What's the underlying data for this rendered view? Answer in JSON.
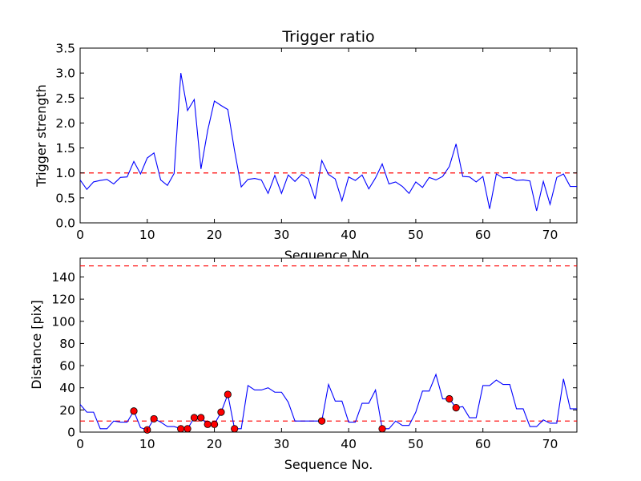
{
  "chart_data": [
    {
      "type": "line",
      "title": "Trigger ratio",
      "xlabel": "Sequence No.",
      "ylabel": "Trigger strength",
      "xlim": [
        0,
        74
      ],
      "ylim": [
        0,
        3.5
      ],
      "xticks": [
        0,
        10,
        20,
        30,
        40,
        50,
        60,
        70
      ],
      "yticks": [
        0.0,
        0.5,
        1.0,
        1.5,
        2.0,
        2.5,
        3.0,
        3.5
      ],
      "ytick_labels": [
        "0.0",
        "0.5",
        "1.0",
        "1.5",
        "2.0",
        "2.5",
        "3.0",
        "3.5"
      ],
      "threshold_lines": [
        1.0
      ],
      "line_color": "#0000ff",
      "threshold_color": "#ff0000",
      "series": [
        {
          "x": [
            0,
            1,
            2,
            3,
            4,
            5,
            6,
            7,
            8,
            9,
            10,
            11,
            12,
            13,
            14,
            15,
            16,
            17,
            18,
            19,
            20,
            21,
            22,
            23,
            24,
            25,
            26,
            27,
            28,
            29,
            30,
            31,
            32,
            33,
            34,
            35,
            36,
            37,
            38,
            39,
            40,
            41,
            42,
            43,
            44,
            45,
            46,
            47,
            48,
            49,
            50,
            51,
            52,
            53,
            54,
            55,
            56,
            57,
            58,
            59,
            60,
            61,
            62,
            63,
            64,
            65,
            66,
            67,
            68,
            69,
            70,
            71,
            72,
            73,
            74
          ],
          "values": [
            0.86,
            0.67,
            0.82,
            0.85,
            0.87,
            0.78,
            0.91,
            0.92,
            1.23,
            0.98,
            1.3,
            1.4,
            0.86,
            0.75,
            0.99,
            3.0,
            2.25,
            2.47,
            1.08,
            1.85,
            2.44,
            2.35,
            2.27,
            1.45,
            0.72,
            0.87,
            0.89,
            0.86,
            0.59,
            0.95,
            0.59,
            0.96,
            0.83,
            0.97,
            0.88,
            0.48,
            1.25,
            0.97,
            0.88,
            0.44,
            0.92,
            0.85,
            0.96,
            0.68,
            0.9,
            1.18,
            0.78,
            0.82,
            0.73,
            0.59,
            0.82,
            0.71,
            0.91,
            0.86,
            0.93,
            1.13,
            1.58,
            0.93,
            0.92,
            0.82,
            0.93,
            0.28,
            0.98,
            0.9,
            0.91,
            0.85,
            0.86,
            0.84,
            0.24,
            0.83,
            0.37,
            0.91,
            0.98,
            0.73,
            0.73
          ]
        }
      ]
    },
    {
      "type": "line",
      "title": "",
      "xlabel": "Sequence No.",
      "ylabel": "Distance [pix]",
      "xlim": [
        0,
        74
      ],
      "ylim": [
        0,
        157
      ],
      "xticks": [
        0,
        10,
        20,
        30,
        40,
        50,
        60,
        70
      ],
      "yticks": [
        0,
        20,
        40,
        60,
        80,
        100,
        120,
        140
      ],
      "ytick_labels": [
        "0",
        "20",
        "40",
        "60",
        "80",
        "100",
        "120",
        "140"
      ],
      "threshold_lines": [
        10,
        150
      ],
      "line_color": "#0000ff",
      "threshold_color": "#ff0000",
      "marker_color": "#ff0000",
      "series": [
        {
          "x": [
            0,
            1,
            2,
            3,
            4,
            5,
            6,
            7,
            8,
            9,
            10,
            11,
            12,
            13,
            14,
            15,
            16,
            17,
            18,
            19,
            20,
            21,
            22,
            23,
            24,
            25,
            26,
            27,
            28,
            29,
            30,
            31,
            32,
            33,
            34,
            35,
            36,
            37,
            38,
            39,
            40,
            41,
            42,
            43,
            44,
            45,
            46,
            47,
            48,
            49,
            50,
            51,
            52,
            53,
            54,
            55,
            56,
            57,
            58,
            59,
            60,
            61,
            62,
            63,
            64,
            65,
            66,
            67,
            68,
            69,
            70,
            71,
            72,
            73,
            74
          ],
          "values": [
            25,
            18,
            18,
            3,
            3,
            10,
            9,
            9,
            19,
            4,
            2,
            12,
            9,
            5,
            5,
            3,
            3,
            13,
            13,
            7,
            7,
            18,
            34,
            3,
            3,
            42,
            38,
            38,
            40,
            36,
            36,
            27,
            10,
            10,
            10,
            10,
            10,
            43,
            28,
            28,
            9,
            9,
            26,
            26,
            38,
            3,
            3,
            10,
            6,
            6,
            18,
            37,
            37,
            52,
            30,
            30,
            22,
            23,
            13,
            13,
            42,
            42,
            47,
            43,
            43,
            21,
            21,
            5,
            5,
            11,
            8,
            8,
            48,
            21,
            21
          ]
        }
      ],
      "highlight_points": [
        {
          "x": 8,
          "y": 19
        },
        {
          "x": 10,
          "y": 2
        },
        {
          "x": 11,
          "y": 12
        },
        {
          "x": 15,
          "y": 3
        },
        {
          "x": 16,
          "y": 3
        },
        {
          "x": 17,
          "y": 13
        },
        {
          "x": 18,
          "y": 13
        },
        {
          "x": 19,
          "y": 7
        },
        {
          "x": 20,
          "y": 7
        },
        {
          "x": 21,
          "y": 18
        },
        {
          "x": 22,
          "y": 34
        },
        {
          "x": 23,
          "y": 3
        },
        {
          "x": 36,
          "y": 10
        },
        {
          "x": 45,
          "y": 3
        },
        {
          "x": 55,
          "y": 30
        },
        {
          "x": 56,
          "y": 22
        }
      ]
    }
  ]
}
